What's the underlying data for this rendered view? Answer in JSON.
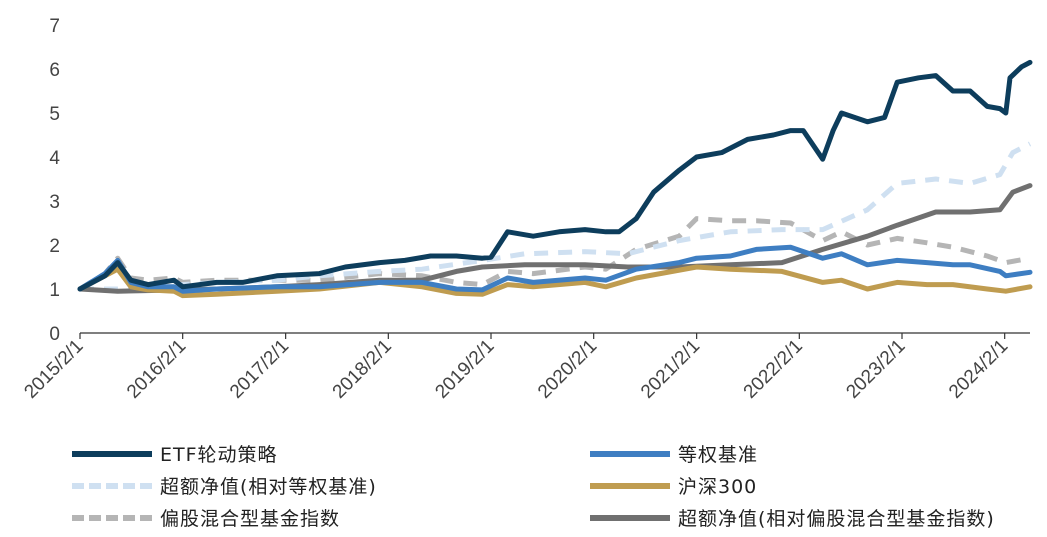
{
  "chart_data": {
    "type": "line",
    "ylim": [
      0,
      7
    ],
    "yticks": [
      "0",
      "1",
      "2",
      "3",
      "4",
      "5",
      "6",
      "7"
    ],
    "xticks": [
      "2015/2/1",
      "2016/2/1",
      "2017/2/1",
      "2018/2/1",
      "2019/2/1",
      "2020/2/1",
      "2021/2/1",
      "2022/2/1",
      "2023/2/1",
      "2024/2/1"
    ],
    "x_start": "2015/2/1",
    "x_end": "2024/5/1",
    "legend_position": "bottom",
    "series": [
      {
        "name": "ETF轮动策略",
        "color": "#0d3d5c",
        "style": "solid",
        "points": [
          [
            "2015/2/1",
            1.0
          ],
          [
            "2015/5/1",
            1.3
          ],
          [
            "2015/6/15",
            1.6
          ],
          [
            "2015/8/1",
            1.2
          ],
          [
            "2015/10/1",
            1.1
          ],
          [
            "2016/1/1",
            1.2
          ],
          [
            "2016/2/1",
            1.05
          ],
          [
            "2016/6/1",
            1.15
          ],
          [
            "2016/9/1",
            1.15
          ],
          [
            "2017/1/1",
            1.3
          ],
          [
            "2017/6/1",
            1.35
          ],
          [
            "2017/9/1",
            1.5
          ],
          [
            "2018/1/1",
            1.6
          ],
          [
            "2018/4/1",
            1.65
          ],
          [
            "2018/7/1",
            1.75
          ],
          [
            "2018/10/1",
            1.75
          ],
          [
            "2019/1/1",
            1.7
          ],
          [
            "2019/2/1",
            1.72
          ],
          [
            "2019/4/1",
            2.3
          ],
          [
            "2019/7/1",
            2.2
          ],
          [
            "2019/10/1",
            2.3
          ],
          [
            "2020/1/1",
            2.35
          ],
          [
            "2020/3/15",
            2.3
          ],
          [
            "2020/5/1",
            2.3
          ],
          [
            "2020/7/1",
            2.6
          ],
          [
            "2020/9/1",
            3.2
          ],
          [
            "2020/12/1",
            3.7
          ],
          [
            "2021/2/1",
            4.0
          ],
          [
            "2021/5/1",
            4.1
          ],
          [
            "2021/8/1",
            4.4
          ],
          [
            "2021/11/1",
            4.5
          ],
          [
            "2022/1/1",
            4.6
          ],
          [
            "2022/2/15",
            4.6
          ],
          [
            "2022/4/25",
            3.95
          ],
          [
            "2022/6/1",
            4.6
          ],
          [
            "2022/7/1",
            5.0
          ],
          [
            "2022/10/1",
            4.8
          ],
          [
            "2022/12/1",
            4.9
          ],
          [
            "2023/1/15",
            5.7
          ],
          [
            "2023/4/1",
            5.8
          ],
          [
            "2023/6/1",
            5.85
          ],
          [
            "2023/8/1",
            5.5
          ],
          [
            "2023/10/1",
            5.5
          ],
          [
            "2023/12/1",
            5.15
          ],
          [
            "2024/1/15",
            5.1
          ],
          [
            "2024/2/5",
            5.0
          ],
          [
            "2024/2/20",
            5.8
          ],
          [
            "2024/4/1",
            6.05
          ],
          [
            "2024/5/1",
            6.15
          ]
        ]
      },
      {
        "name": "等权基准",
        "color": "#3e7ec2",
        "style": "solid",
        "points": [
          [
            "2015/2/1",
            1.0
          ],
          [
            "2015/5/1",
            1.35
          ],
          [
            "2015/6/15",
            1.65
          ],
          [
            "2015/8/1",
            1.15
          ],
          [
            "2015/10/1",
            1.05
          ],
          [
            "2016/1/1",
            1.05
          ],
          [
            "2016/2/1",
            0.95
          ],
          [
            "2016/6/1",
            1.0
          ],
          [
            "2017/1/1",
            1.05
          ],
          [
            "2017/6/1",
            1.05
          ],
          [
            "2018/1/1",
            1.15
          ],
          [
            "2018/6/1",
            1.15
          ],
          [
            "2018/10/1",
            1.0
          ],
          [
            "2019/1/1",
            0.98
          ],
          [
            "2019/4/1",
            1.25
          ],
          [
            "2019/7/1",
            1.15
          ],
          [
            "2020/1/1",
            1.25
          ],
          [
            "2020/3/15",
            1.2
          ],
          [
            "2020/7/1",
            1.45
          ],
          [
            "2020/12/1",
            1.6
          ],
          [
            "2021/2/1",
            1.7
          ],
          [
            "2021/6/1",
            1.75
          ],
          [
            "2021/9/1",
            1.9
          ],
          [
            "2022/1/1",
            1.95
          ],
          [
            "2022/4/25",
            1.7
          ],
          [
            "2022/7/1",
            1.8
          ],
          [
            "2022/10/1",
            1.55
          ],
          [
            "2023/1/15",
            1.65
          ],
          [
            "2023/5/1",
            1.6
          ],
          [
            "2023/8/1",
            1.55
          ],
          [
            "2023/10/1",
            1.55
          ],
          [
            "2024/1/15",
            1.4
          ],
          [
            "2024/2/5",
            1.3
          ],
          [
            "2024/5/1",
            1.38
          ]
        ]
      },
      {
        "name": "超额净值(相对等权基准)",
        "color": "#cfe0f1",
        "style": "dashed",
        "points": [
          [
            "2015/2/1",
            1.0
          ],
          [
            "2015/6/15",
            1.0
          ],
          [
            "2016/2/1",
            1.1
          ],
          [
            "2016/6/1",
            1.15
          ],
          [
            "2017/1/1",
            1.2
          ],
          [
            "2017/6/1",
            1.3
          ],
          [
            "2018/1/1",
            1.4
          ],
          [
            "2018/6/1",
            1.45
          ],
          [
            "2019/1/1",
            1.65
          ],
          [
            "2019/6/1",
            1.8
          ],
          [
            "2020/1/1",
            1.85
          ],
          [
            "2020/6/1",
            1.8
          ],
          [
            "2020/12/1",
            2.1
          ],
          [
            "2021/6/1",
            2.3
          ],
          [
            "2021/12/1",
            2.35
          ],
          [
            "2022/4/25",
            2.35
          ],
          [
            "2022/10/1",
            2.8
          ],
          [
            "2023/1/15",
            3.4
          ],
          [
            "2023/6/1",
            3.5
          ],
          [
            "2023/10/1",
            3.4
          ],
          [
            "2024/1/15",
            3.6
          ],
          [
            "2024/3/1",
            4.1
          ],
          [
            "2024/5/1",
            4.3
          ]
        ]
      },
      {
        "name": "沪深300",
        "color": "#bf9c50",
        "style": "solid",
        "points": [
          [
            "2015/2/1",
            1.0
          ],
          [
            "2015/5/1",
            1.3
          ],
          [
            "2015/6/15",
            1.45
          ],
          [
            "2015/8/1",
            1.05
          ],
          [
            "2015/10/1",
            0.98
          ],
          [
            "2016/1/1",
            0.95
          ],
          [
            "2016/2/1",
            0.85
          ],
          [
            "2016/6/1",
            0.88
          ],
          [
            "2017/1/1",
            0.95
          ],
          [
            "2017/6/1",
            1.0
          ],
          [
            "2018/1/1",
            1.15
          ],
          [
            "2018/6/1",
            1.05
          ],
          [
            "2018/10/1",
            0.9
          ],
          [
            "2019/1/1",
            0.88
          ],
          [
            "2019/4/1",
            1.1
          ],
          [
            "2019/7/1",
            1.05
          ],
          [
            "2020/1/1",
            1.15
          ],
          [
            "2020/3/15",
            1.05
          ],
          [
            "2020/7/1",
            1.25
          ],
          [
            "2021/2/1",
            1.5
          ],
          [
            "2021/6/1",
            1.45
          ],
          [
            "2021/12/1",
            1.4
          ],
          [
            "2022/4/25",
            1.15
          ],
          [
            "2022/7/1",
            1.2
          ],
          [
            "2022/10/1",
            1.0
          ],
          [
            "2023/1/15",
            1.15
          ],
          [
            "2023/5/1",
            1.1
          ],
          [
            "2023/8/1",
            1.1
          ],
          [
            "2023/12/1",
            1.0
          ],
          [
            "2024/2/5",
            0.95
          ],
          [
            "2024/5/1",
            1.05
          ]
        ]
      },
      {
        "name": "偏股混合型基金指数",
        "color": "#b5b5b5",
        "style": "dashed",
        "points": [
          [
            "2015/2/1",
            1.0
          ],
          [
            "2015/5/1",
            1.35
          ],
          [
            "2015/6/15",
            1.7
          ],
          [
            "2015/8/1",
            1.25
          ],
          [
            "2015/10/1",
            1.2
          ],
          [
            "2016/1/1",
            1.25
          ],
          [
            "2016/2/1",
            1.15
          ],
          [
            "2016/6/1",
            1.2
          ],
          [
            "2017/1/1",
            1.2
          ],
          [
            "2017/6/1",
            1.2
          ],
          [
            "2018/1/1",
            1.35
          ],
          [
            "2018/6/1",
            1.3
          ],
          [
            "2018/10/1",
            1.15
          ],
          [
            "2019/1/1",
            1.1
          ],
          [
            "2019/4/1",
            1.4
          ],
          [
            "2019/7/1",
            1.35
          ],
          [
            "2020/1/1",
            1.5
          ],
          [
            "2020/3/15",
            1.45
          ],
          [
            "2020/7/1",
            1.9
          ],
          [
            "2020/12/1",
            2.2
          ],
          [
            "2021/2/1",
            2.6
          ],
          [
            "2021/6/1",
            2.55
          ],
          [
            "2021/9/1",
            2.55
          ],
          [
            "2022/1/1",
            2.5
          ],
          [
            "2022/4/25",
            2.1
          ],
          [
            "2022/7/1",
            2.3
          ],
          [
            "2022/10/1",
            2.0
          ],
          [
            "2023/1/15",
            2.15
          ],
          [
            "2023/5/1",
            2.05
          ],
          [
            "2023/8/1",
            1.95
          ],
          [
            "2023/12/1",
            1.75
          ],
          [
            "2024/2/5",
            1.6
          ],
          [
            "2024/5/1",
            1.7
          ]
        ]
      },
      {
        "name": "超额净值(相对偏股混合型基金指数)",
        "color": "#707070",
        "style": "solid",
        "points": [
          [
            "2015/2/1",
            1.0
          ],
          [
            "2015/6/15",
            0.95
          ],
          [
            "2016/2/1",
            0.98
          ],
          [
            "2016/6/1",
            1.0
          ],
          [
            "2017/1/1",
            1.05
          ],
          [
            "2017/6/1",
            1.1
          ],
          [
            "2018/1/1",
            1.2
          ],
          [
            "2018/6/1",
            1.2
          ],
          [
            "2018/10/1",
            1.4
          ],
          [
            "2019/1/1",
            1.5
          ],
          [
            "2019/6/1",
            1.55
          ],
          [
            "2020/1/1",
            1.55
          ],
          [
            "2020/6/1",
            1.5
          ],
          [
            "2020/12/1",
            1.5
          ],
          [
            "2021/6/1",
            1.55
          ],
          [
            "2021/12/1",
            1.6
          ],
          [
            "2022/4/25",
            1.9
          ],
          [
            "2022/10/1",
            2.2
          ],
          [
            "2023/1/15",
            2.45
          ],
          [
            "2023/6/1",
            2.75
          ],
          [
            "2023/10/1",
            2.75
          ],
          [
            "2024/1/15",
            2.8
          ],
          [
            "2024/3/1",
            3.2
          ],
          [
            "2024/5/1",
            3.35
          ]
        ]
      }
    ]
  }
}
